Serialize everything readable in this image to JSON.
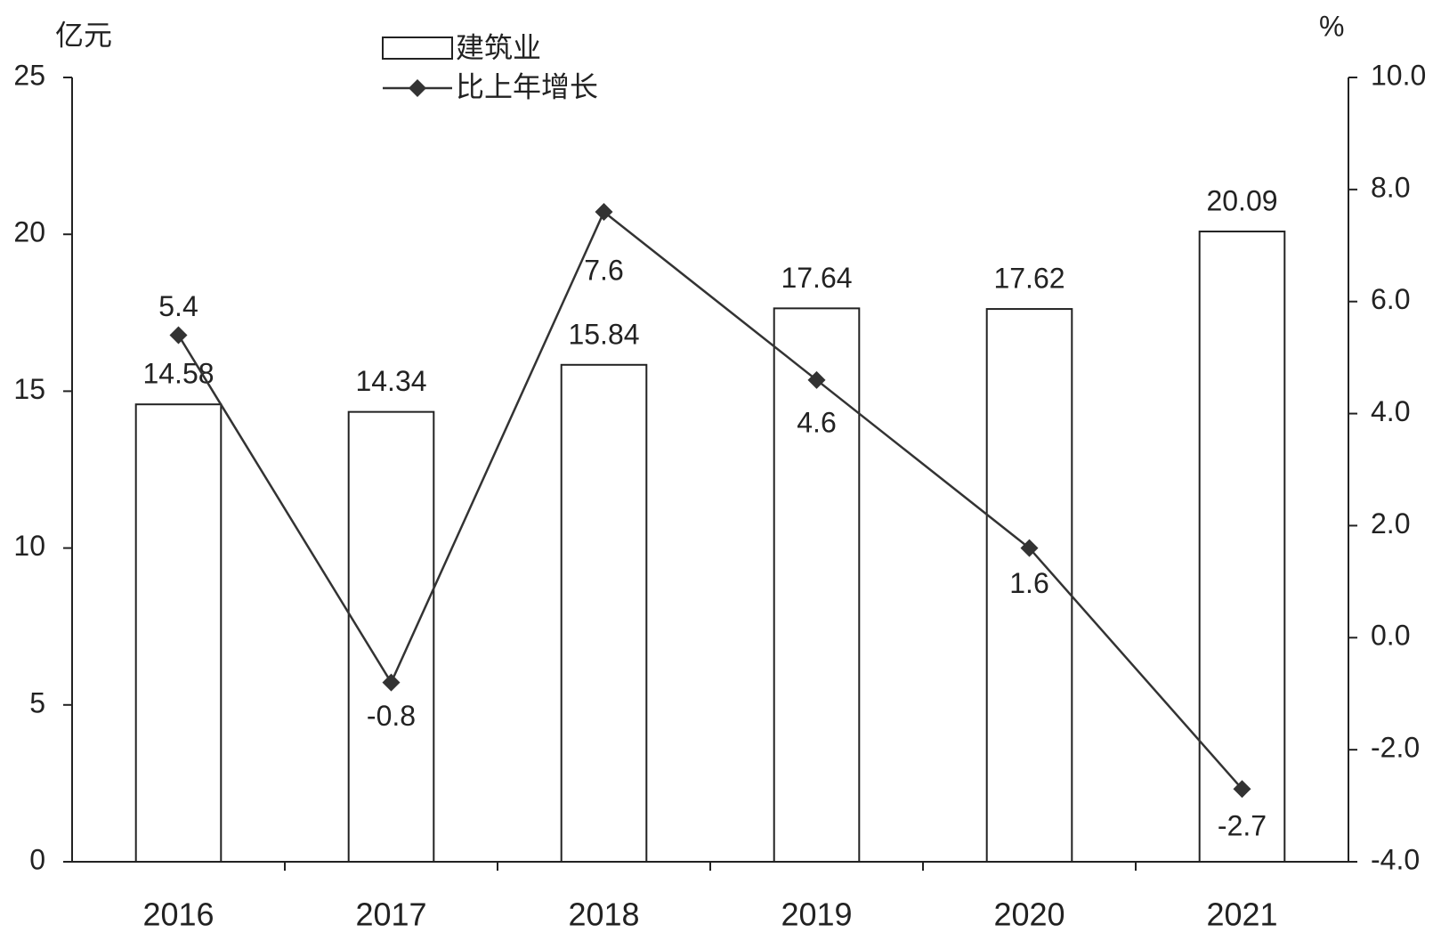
{
  "chart_data": {
    "type": "bar",
    "y_axis_label": "亿元",
    "y2_axis_label": "%",
    "categories": [
      "2016",
      "2017",
      "2018",
      "2019",
      "2020",
      "2021"
    ],
    "series": [
      {
        "name": "建筑业",
        "type": "bar",
        "color": "#ffffff",
        "values": [
          14.58,
          14.34,
          15.84,
          17.64,
          17.62,
          20.09
        ]
      },
      {
        "name": "比上年增长",
        "type": "line",
        "axis": "y2",
        "color": "#333333",
        "values": [
          5.4,
          -0.8,
          7.6,
          4.6,
          1.6,
          -2.7
        ]
      }
    ],
    "ylim": [
      0,
      25
    ],
    "yticks": [
      0,
      5,
      10,
      15,
      20,
      25
    ],
    "y2lim": [
      -4,
      10
    ],
    "y2ticks": [
      {
        "value": -4,
        "label": "-4.0"
      },
      {
        "value": -2,
        "label": "-2.0"
      },
      {
        "value": 0,
        "label": "0.0"
      },
      {
        "value": 2,
        "label": "2.0"
      },
      {
        "value": 4,
        "label": "4.0"
      },
      {
        "value": 6,
        "label": "6.0"
      },
      {
        "value": 8,
        "label": "8.0"
      },
      {
        "value": 10,
        "label": "10.0"
      }
    ],
    "grid": false
  }
}
